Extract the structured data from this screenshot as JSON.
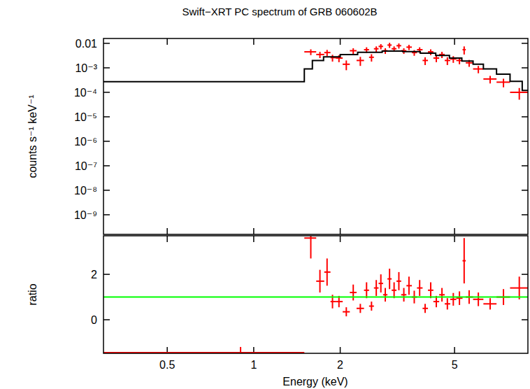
{
  "chart_data": [
    {
      "type": "scatter",
      "title": "Swift−XRT PC spectrum of GRB 060602B",
      "ylabel": "counts s⁻¹ keV⁻¹",
      "log": true,
      "grid": false,
      "tick_labels": "y",
      "xlim": [
        0.3,
        9
      ],
      "xticks": [
        0.5,
        1,
        2,
        5
      ],
      "ylim": [
        1.58e-10,
        0.0158
      ],
      "yticks": [
        0.01,
        {
          "value": 0.001,
          "label": "10⁻³"
        },
        {
          "value": 0.0001,
          "label": "10⁻⁴"
        },
        {
          "value": 1e-05,
          "label": "10⁻⁵"
        },
        {
          "value": 1e-06,
          "label": "10⁻⁶"
        },
        {
          "value": 1e-07,
          "label": "10⁻⁷"
        },
        {
          "value": 1e-08,
          "label": "10⁻⁸"
        },
        {
          "value": 1e-09,
          "label": "10⁻⁹"
        }
      ],
      "series": [
        {
          "type": "scatter",
          "color": "#ff0000",
          "marker": "cross",
          "x": [
            1.58,
            1.7,
            1.8,
            1.88,
            1.98,
            2.1,
            2.22,
            2.35,
            2.47,
            2.57,
            2.67,
            2.77,
            2.87,
            2.97,
            3.08,
            3.2,
            3.33,
            3.47,
            3.62,
            3.78,
            3.95,
            4.13,
            4.32,
            4.52,
            4.72,
            4.95,
            5.2,
            5.4,
            5.62,
            6.05,
            6.65,
            7.4,
            8.4
          ],
          "x_low": [
            1.5,
            1.65,
            1.76,
            1.85,
            1.93,
            2.04,
            2.16,
            2.28,
            2.42,
            2.52,
            2.62,
            2.72,
            2.82,
            2.92,
            3.02,
            3.14,
            3.26,
            3.4,
            3.55,
            3.7,
            3.87,
            4.04,
            4.22,
            4.42,
            4.62,
            4.83,
            5.07,
            5.33,
            5.47,
            5.8,
            6.3,
            7.0,
            7.8
          ],
          "x_high": [
            1.65,
            1.76,
            1.85,
            1.93,
            2.04,
            2.16,
            2.28,
            2.42,
            2.52,
            2.62,
            2.72,
            2.82,
            2.92,
            3.02,
            3.14,
            3.26,
            3.4,
            3.55,
            3.7,
            3.87,
            4.04,
            4.22,
            4.42,
            4.62,
            4.83,
            5.07,
            5.33,
            5.47,
            5.8,
            6.3,
            7.0,
            7.8,
            9.0
          ],
          "values": [
            0.0045,
            0.0035,
            0.0042,
            0.0026,
            0.0025,
            0.0014,
            0.005,
            0.002,
            0.0055,
            0.0027,
            0.006,
            0.0075,
            0.005,
            0.0085,
            0.006,
            0.008,
            0.005,
            0.007,
            0.0042,
            0.0055,
            0.002,
            0.0045,
            0.0025,
            0.0035,
            0.002,
            0.0023,
            0.002,
            0.0055,
            0.0016,
            0.0009,
            0.00035,
            0.00026,
            0.0001
          ],
          "errors": [
            0.0012,
            0.001,
            0.0012,
            0.0008,
            0.0008,
            0.0006,
            0.0013,
            0.0008,
            0.0014,
            0.0009,
            0.0015,
            0.0018,
            0.0013,
            0.002,
            0.0015,
            0.0019,
            0.0013,
            0.0017,
            0.0011,
            0.0014,
            0.0007,
            0.0012,
            0.0008,
            0.001,
            0.0007,
            0.0007,
            0.0006,
            0.002,
            0.0005,
            0.0003,
            0.00012,
            0.0001,
            5e-05
          ]
        },
        {
          "type": "line",
          "line_style": "step",
          "color": "#000000",
          "x": [
            0.3,
            1.5,
            1.6,
            1.75,
            2.0,
            2.3,
            2.8,
            3.3,
            3.8,
            4.3,
            4.8,
            5.3,
            5.8,
            6.3,
            7.0,
            7.8,
            8.6,
            9.0
          ],
          "values": [
            0.00027,
            0.0009,
            0.002,
            0.0028,
            0.0035,
            0.0043,
            0.0048,
            0.0046,
            0.004,
            0.0032,
            0.0025,
            0.0019,
            0.0014,
            0.0009,
            0.00055,
            0.00028,
            0.00012,
            0.00012
          ]
        }
      ]
    },
    {
      "type": "scatter",
      "xlabel": "Energy (keV)",
      "ylabel": "ratio",
      "log": "x",
      "grid": false,
      "xlim": [
        0.3,
        9
      ],
      "xticks": [
        0.5,
        1,
        2,
        5
      ],
      "ylim": [
        -1.48,
        3.7
      ],
      "yticks": [
        0,
        2
      ],
      "series": [
        {
          "type": "scatter",
          "color": "#ff0000",
          "marker": "cross",
          "x": [
            0.9,
            1.58,
            1.7,
            1.8,
            1.88,
            1.98,
            2.1,
            2.22,
            2.35,
            2.47,
            2.57,
            2.67,
            2.77,
            2.87,
            2.97,
            3.08,
            3.2,
            3.33,
            3.47,
            3.62,
            3.78,
            3.95,
            4.13,
            4.32,
            4.52,
            4.72,
            4.95,
            5.2,
            5.4,
            5.62,
            6.05,
            6.65,
            7.4,
            8.4
          ],
          "x_low": [
            0.3,
            1.5,
            1.65,
            1.76,
            1.85,
            1.93,
            2.04,
            2.16,
            2.28,
            2.42,
            2.52,
            2.62,
            2.72,
            2.82,
            2.92,
            3.02,
            3.14,
            3.26,
            3.4,
            3.55,
            3.7,
            3.87,
            4.04,
            4.22,
            4.42,
            4.62,
            4.83,
            5.07,
            5.33,
            5.47,
            5.8,
            6.3,
            7.0,
            7.8
          ],
          "x_high": [
            1.5,
            1.65,
            1.76,
            1.85,
            1.93,
            2.04,
            2.16,
            2.28,
            2.42,
            2.52,
            2.62,
            2.72,
            2.82,
            2.92,
            3.02,
            3.14,
            3.26,
            3.4,
            3.55,
            3.7,
            3.87,
            4.04,
            4.22,
            4.42,
            4.62,
            4.83,
            5.07,
            5.33,
            5.47,
            5.8,
            6.3,
            7.0,
            7.8,
            9.0
          ],
          "values": [
            -1.45,
            3.6,
            1.7,
            2.1,
            0.8,
            0.8,
            0.35,
            1.2,
            0.5,
            1.3,
            0.6,
            1.4,
            1.6,
            1.1,
            1.8,
            1.3,
            1.7,
            1.1,
            1.5,
            1.0,
            1.4,
            0.5,
            1.3,
            0.8,
            1.1,
            0.7,
            0.9,
            0.95,
            2.6,
            1.0,
            0.9,
            0.7,
            1.0,
            1.4
          ],
          "errors": [
            0.25,
            0.9,
            0.5,
            0.6,
            0.3,
            0.25,
            0.2,
            0.35,
            0.2,
            0.35,
            0.2,
            0.35,
            0.4,
            0.3,
            0.45,
            0.35,
            0.4,
            0.3,
            0.4,
            0.28,
            0.35,
            0.2,
            0.35,
            0.25,
            0.3,
            0.25,
            0.28,
            0.3,
            1.0,
            0.3,
            0.3,
            0.25,
            0.35,
            0.5
          ]
        },
        {
          "type": "line",
          "color": "#00ff00",
          "x": [
            0.3,
            9
          ],
          "values": [
            1,
            1
          ]
        }
      ]
    }
  ]
}
